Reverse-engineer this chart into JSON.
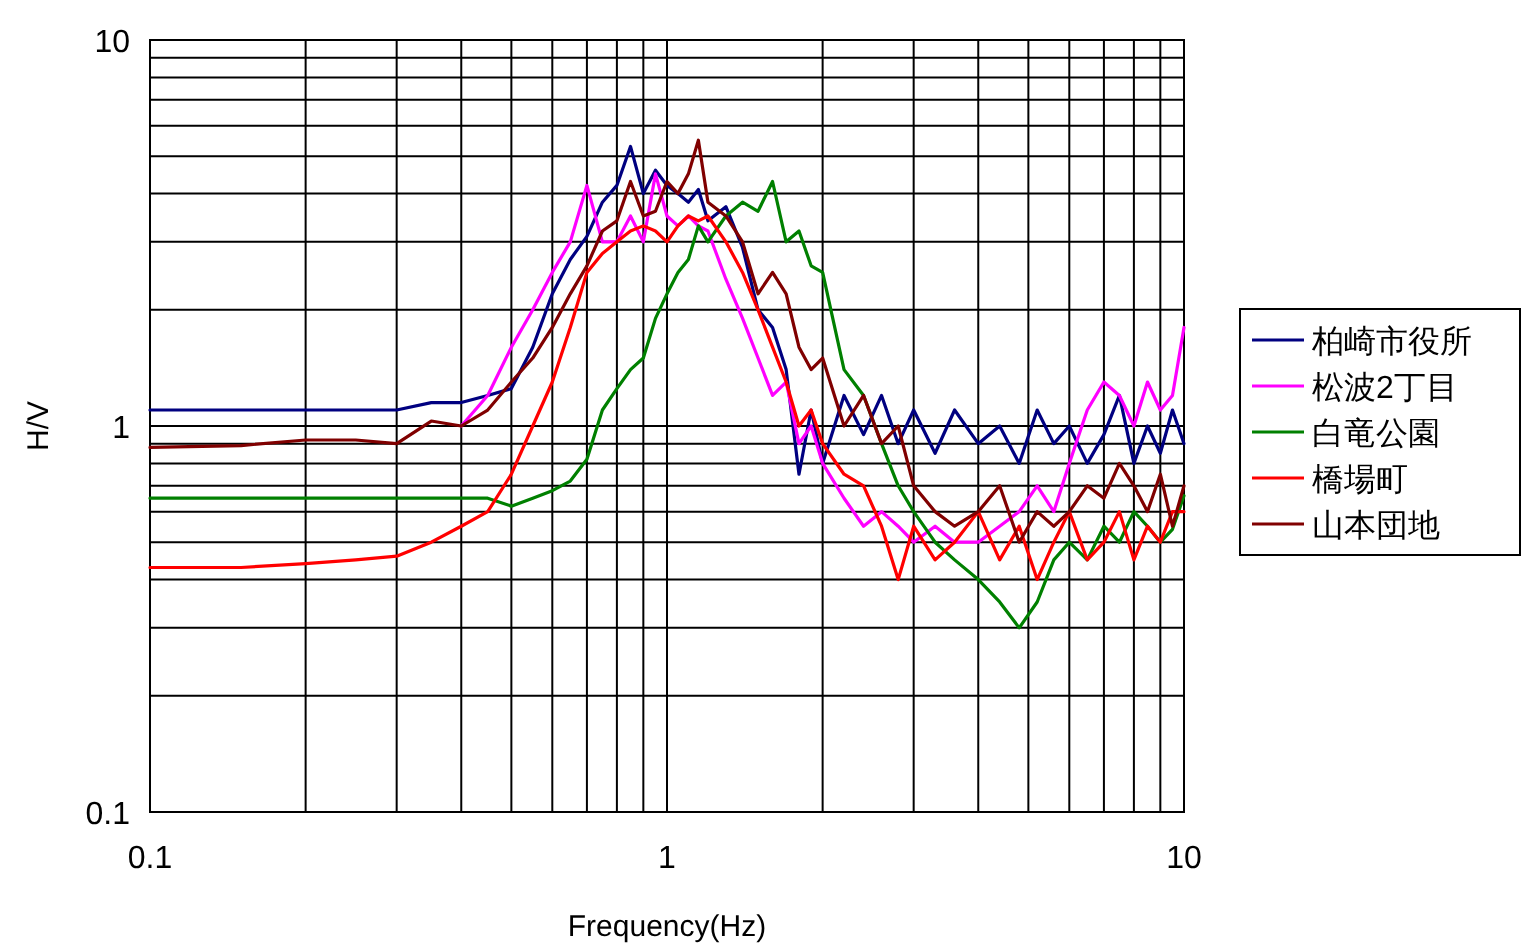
{
  "chart_data": {
    "type": "line",
    "xlabel": "Frequency(Hz)",
    "ylabel": "H/V",
    "log": "xy",
    "grid": true,
    "legend": "right",
    "xlim": [
      0.1,
      10
    ],
    "ylim": [
      0.1,
      10
    ],
    "xticks": [
      0.1,
      1,
      10
    ],
    "yticks": [
      0.1,
      1,
      10
    ],
    "x": [
      0.1,
      0.15,
      0.2,
      0.25,
      0.3,
      0.35,
      0.4,
      0.45,
      0.5,
      0.55,
      0.6,
      0.65,
      0.7,
      0.75,
      0.8,
      0.85,
      0.9,
      0.95,
      1.0,
      1.05,
      1.1,
      1.15,
      1.2,
      1.3,
      1.4,
      1.5,
      1.6,
      1.7,
      1.8,
      1.9,
      2.0,
      2.2,
      2.4,
      2.6,
      2.8,
      3.0,
      3.3,
      3.6,
      4.0,
      4.4,
      4.8,
      5.2,
      5.6,
      6.0,
      6.5,
      7.0,
      7.5,
      8.0,
      8.5,
      9.0,
      9.5,
      10
    ],
    "series": [
      {
        "name": "柏崎市役所",
        "color": "#000080",
        "values": [
          1.1,
          1.1,
          1.1,
          1.1,
          1.1,
          1.15,
          1.15,
          1.2,
          1.25,
          1.6,
          2.2,
          2.7,
          3.1,
          3.8,
          4.2,
          5.3,
          4.0,
          4.6,
          4.2,
          4.0,
          3.8,
          4.1,
          3.4,
          3.7,
          2.9,
          2.0,
          1.8,
          1.4,
          0.75,
          1.1,
          0.8,
          1.2,
          0.95,
          1.2,
          0.9,
          1.1,
          0.85,
          1.1,
          0.9,
          1.0,
          0.8,
          1.1,
          0.9,
          1.0,
          0.8,
          0.95,
          1.2,
          0.8,
          1.0,
          0.85,
          1.1,
          0.9
        ]
      },
      {
        "name": "松波2丁目",
        "color": "#ff00ff",
        "values": [
          null,
          null,
          null,
          null,
          null,
          null,
          1.0,
          1.2,
          1.6,
          2.0,
          2.5,
          3.0,
          4.2,
          3.0,
          3.0,
          3.5,
          3.0,
          4.5,
          3.5,
          3.3,
          3.5,
          3.3,
          3.2,
          2.4,
          1.9,
          1.5,
          1.2,
          1.3,
          0.9,
          1.0,
          0.8,
          0.65,
          0.55,
          0.6,
          0.55,
          0.5,
          0.55,
          0.5,
          0.5,
          0.55,
          0.6,
          0.7,
          0.6,
          0.8,
          1.1,
          1.3,
          1.2,
          1.0,
          1.3,
          1.1,
          1.2,
          1.8
        ]
      },
      {
        "name": "白竜公園",
        "color": "#008000",
        "values": [
          0.65,
          0.65,
          0.65,
          0.65,
          0.65,
          0.65,
          0.65,
          0.65,
          0.62,
          0.65,
          0.68,
          0.72,
          0.82,
          1.1,
          1.25,
          1.4,
          1.5,
          1.9,
          2.2,
          2.5,
          2.7,
          3.3,
          3.0,
          3.5,
          3.8,
          3.6,
          4.3,
          3.0,
          3.2,
          2.6,
          2.5,
          1.4,
          1.2,
          0.9,
          0.7,
          0.6,
          0.5,
          0.45,
          0.4,
          0.35,
          0.3,
          0.35,
          0.45,
          0.5,
          0.45,
          0.55,
          0.5,
          0.6,
          0.55,
          0.5,
          0.54,
          0.66
        ]
      },
      {
        "name": "橋場町",
        "color": "#ff0000",
        "values": [
          0.43,
          0.43,
          0.44,
          0.45,
          0.46,
          0.5,
          0.55,
          0.6,
          0.75,
          1.0,
          1.3,
          1.8,
          2.5,
          2.8,
          3.0,
          3.2,
          3.3,
          3.2,
          3.0,
          3.3,
          3.5,
          3.4,
          3.5,
          3.0,
          2.5,
          2.0,
          1.6,
          1.3,
          1.0,
          1.1,
          0.9,
          0.75,
          0.7,
          0.55,
          0.4,
          0.55,
          0.45,
          0.5,
          0.6,
          0.45,
          0.55,
          0.4,
          0.5,
          0.6,
          0.45,
          0.5,
          0.6,
          0.45,
          0.55,
          0.5,
          0.6,
          0.6
        ]
      },
      {
        "name": "山本団地",
        "color": "#800000",
        "values": [
          0.88,
          0.89,
          0.92,
          0.92,
          0.9,
          1.03,
          1.0,
          1.1,
          1.3,
          1.5,
          1.8,
          2.2,
          2.6,
          3.2,
          3.4,
          4.3,
          3.5,
          3.6,
          4.3,
          4.0,
          4.5,
          5.5,
          3.8,
          3.5,
          3.0,
          2.2,
          2.5,
          2.2,
          1.6,
          1.4,
          1.5,
          1.0,
          1.2,
          0.9,
          1.0,
          0.7,
          0.6,
          0.55,
          0.6,
          0.7,
          0.5,
          0.6,
          0.55,
          0.6,
          0.7,
          0.65,
          0.8,
          0.7,
          0.6,
          0.75,
          0.55,
          0.7
        ]
      }
    ]
  }
}
